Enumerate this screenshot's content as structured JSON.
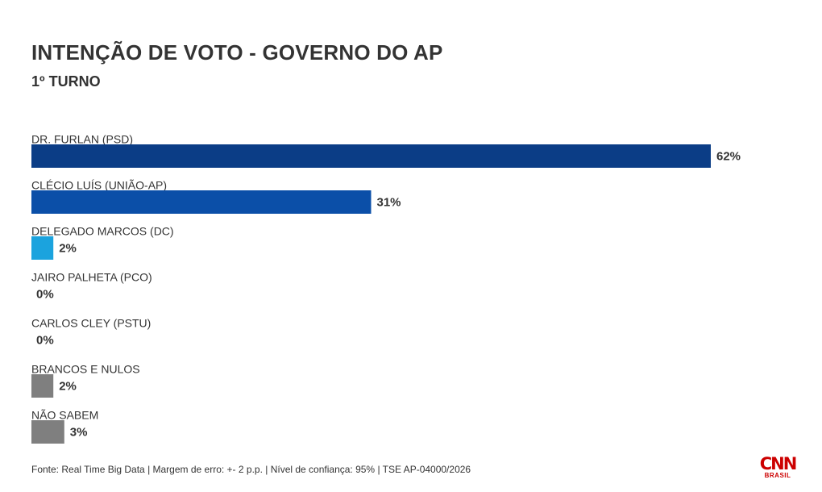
{
  "chart_data": {
    "type": "bar",
    "orientation": "horizontal",
    "title": "INTENÇÃO DE VOTO - GOVERNO DO AP",
    "subtitle": "1º TURNO",
    "categories": [
      "DR. FURLAN (PSD)",
      "CLÉCIO LUÍS (UNIÃO-AP)",
      "DELEGADO MARCOS (DC)",
      "JAIRO PALHETA (PCO)",
      "CARLOS CLEY (PSTU)",
      "BRANCOS E NULOS",
      "NÃO SABEM"
    ],
    "values": [
      62,
      31,
      2,
      0,
      0,
      2,
      3
    ],
    "value_labels": [
      "62%",
      "31%",
      "2%",
      "0%",
      "0%",
      "2%",
      "3%"
    ],
    "colors": [
      "#0b3d86",
      "#0b4fa8",
      "#1ba3de",
      "#0b4fa8",
      "#0b4fa8",
      "#7f7f7f",
      "#7f7f7f"
    ],
    "xlim": [
      0,
      62
    ],
    "grid": false,
    "legend": "none"
  },
  "footer": {
    "source": "Fonte: Real Time Big Data | Margem de erro: +- 2 p.p. | Nível de confiança: 95% | TSE AP-04000/2026"
  },
  "logo": {
    "main": "CNN",
    "sub": "BRASIL",
    "color": "#cc0000"
  }
}
